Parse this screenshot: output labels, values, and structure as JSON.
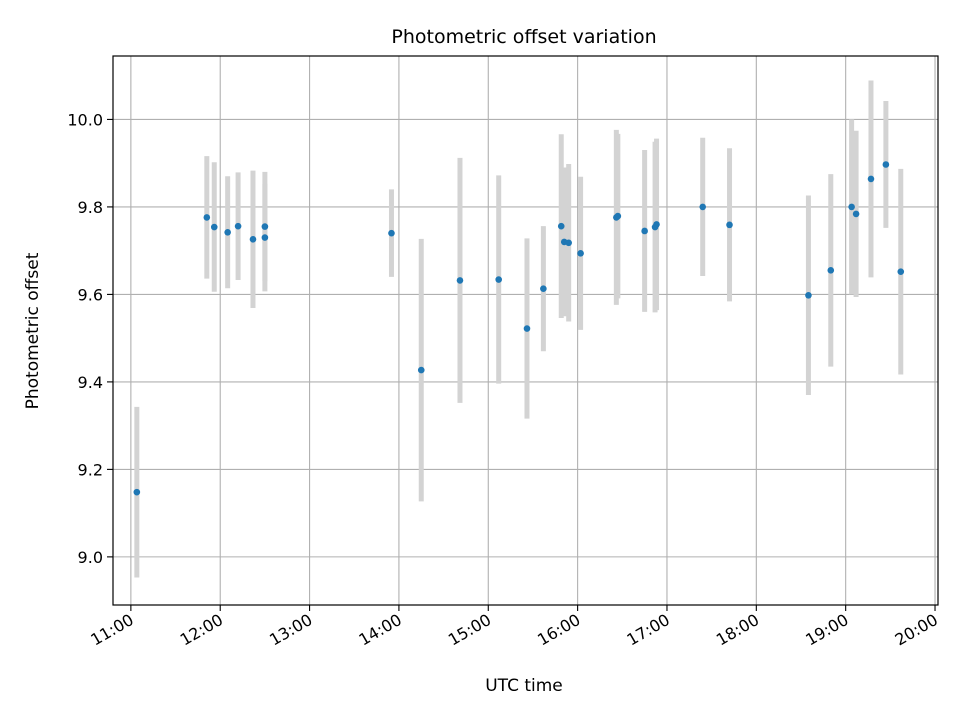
{
  "chart_data": {
    "type": "scatter",
    "title": "Photometric offset variation",
    "xlabel": "UTC time",
    "ylabel": "Photometric offset",
    "x_tick_labels": [
      "11:00",
      "12:00",
      "13:00",
      "14:00",
      "15:00",
      "16:00",
      "17:00",
      "18:00",
      "19:00",
      "20:00"
    ],
    "y_tick_labels": [
      "9.0",
      "9.2",
      "9.4",
      "9.6",
      "9.8",
      "10.0"
    ],
    "xlim": [
      "10:48",
      "20:02"
    ],
    "ylim": [
      8.89,
      10.145
    ],
    "grid": true,
    "colors": {
      "point": "#1f77b4",
      "errorbar": "#d3d3d3",
      "grid": "#b0b0b0"
    },
    "points": [
      {
        "time": "11:04",
        "value": 9.148,
        "err": 0.195
      },
      {
        "time": "11:51",
        "value": 9.776,
        "err": 0.14
      },
      {
        "time": "11:56",
        "value": 9.754,
        "err": 0.148
      },
      {
        "time": "12:05",
        "value": 9.742,
        "err": 0.128
      },
      {
        "time": "12:12",
        "value": 9.756,
        "err": 0.123
      },
      {
        "time": "12:22",
        "value": 9.726,
        "err": 0.157
      },
      {
        "time": "12:30",
        "value": 9.755,
        "err": 0.125
      },
      {
        "time": "12:30",
        "value": 9.73,
        "err": 0.123
      },
      {
        "time": "13:55",
        "value": 9.74,
        "err": 0.1
      },
      {
        "time": "14:15",
        "value": 9.427,
        "err": 0.3
      },
      {
        "time": "14:41",
        "value": 9.632,
        "err": 0.28
      },
      {
        "time": "15:07",
        "value": 9.634,
        "err": 0.238
      },
      {
        "time": "15:26",
        "value": 9.522,
        "err": 0.206
      },
      {
        "time": "15:37",
        "value": 9.613,
        "err": 0.143
      },
      {
        "time": "15:49",
        "value": 9.756,
        "err": 0.21
      },
      {
        "time": "15:51",
        "value": 9.72,
        "err": 0.17
      },
      {
        "time": "15:54",
        "value": 9.718,
        "err": 0.18
      },
      {
        "time": "16:02",
        "value": 9.694,
        "err": 0.175
      },
      {
        "time": "16:26",
        "value": 9.776,
        "err": 0.2
      },
      {
        "time": "16:27",
        "value": 9.779,
        "err": 0.188
      },
      {
        "time": "16:45",
        "value": 9.745,
        "err": 0.185
      },
      {
        "time": "16:52",
        "value": 9.754,
        "err": 0.195
      },
      {
        "time": "16:53",
        "value": 9.76,
        "err": 0.196
      },
      {
        "time": "17:24",
        "value": 9.8,
        "err": 0.158
      },
      {
        "time": "17:42",
        "value": 9.759,
        "err": 0.175
      },
      {
        "time": "18:35",
        "value": 9.598,
        "err": 0.228
      },
      {
        "time": "18:50",
        "value": 9.655,
        "err": 0.22
      },
      {
        "time": "19:04",
        "value": 9.8,
        "err": 0.2
      },
      {
        "time": "19:07",
        "value": 9.784,
        "err": 0.19
      },
      {
        "time": "19:17",
        "value": 9.864,
        "err": 0.225
      },
      {
        "time": "19:27",
        "value": 9.897,
        "err": 0.145
      },
      {
        "time": "19:37",
        "value": 9.652,
        "err": 0.235
      }
    ]
  }
}
